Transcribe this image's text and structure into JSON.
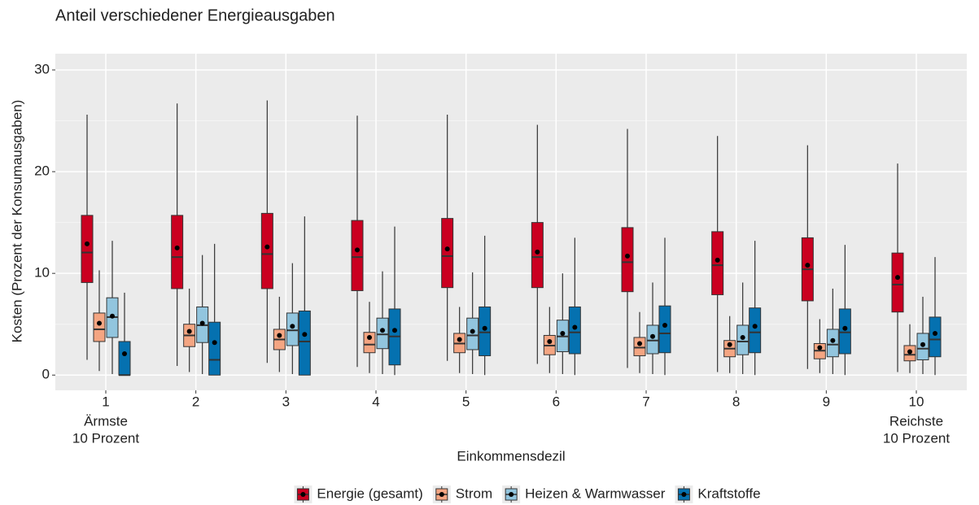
{
  "chart_data": {
    "type": "boxplot",
    "title": "Anteil verschiedener Energieausgaben",
    "xlabel": "Einkommensdezil",
    "ylabel": "Kosten (Prozent der Konsumausgaben)",
    "categories": [
      1,
      2,
      3,
      4,
      5,
      6,
      7,
      8,
      9,
      10
    ],
    "annotations": [
      {
        "x": 1,
        "lines": [
          "Ärmste",
          "10 Prozent"
        ]
      },
      {
        "x": 10,
        "lines": [
          "Reichste",
          "10 Prozent"
        ]
      }
    ],
    "ylim": [
      -1.5,
      31.6
    ],
    "yticks": [
      0,
      10,
      20,
      30
    ],
    "minor_yticks": [
      5,
      15,
      25
    ],
    "grid": true,
    "legend": "bottom",
    "series": [
      {
        "name": "Energie (gesamt)",
        "color": "#ca0020",
        "low": [
          1.5,
          0.9,
          1.2,
          0.8,
          1.4,
          1.1,
          0.7,
          0.3,
          0.6,
          0.3
        ],
        "q1": [
          9.1,
          8.5,
          8.5,
          8.3,
          8.6,
          8.6,
          8.2,
          7.9,
          7.3,
          6.2
        ],
        "median": [
          12.05,
          11.6,
          11.9,
          11.6,
          11.7,
          11.6,
          11.1,
          10.8,
          10.4,
          8.9
        ],
        "q3": [
          15.7,
          15.7,
          15.9,
          15.2,
          15.4,
          15.0,
          14.5,
          14.1,
          13.5,
          12.0
        ],
        "high": [
          25.6,
          26.7,
          27.0,
          25.5,
          25.6,
          24.6,
          24.2,
          23.5,
          22.6,
          20.8
        ],
        "mean": [
          12.9,
          12.5,
          12.6,
          12.3,
          12.4,
          12.1,
          11.7,
          11.3,
          10.8,
          9.6
        ]
      },
      {
        "name": "Strom",
        "color": "#f4a582",
        "low": [
          0.4,
          0.3,
          0.3,
          0.2,
          0.2,
          0.2,
          0.2,
          0.2,
          0.2,
          0.2
        ],
        "q1": [
          3.3,
          2.8,
          2.5,
          2.2,
          2.2,
          2.0,
          1.9,
          1.8,
          1.6,
          1.4
        ],
        "median": [
          4.5,
          3.9,
          3.5,
          3.0,
          3.1,
          2.9,
          2.7,
          2.6,
          2.4,
          2.0
        ],
        "q3": [
          6.1,
          5.0,
          4.5,
          4.2,
          4.1,
          3.9,
          3.7,
          3.4,
          3.1,
          2.9
        ],
        "high": [
          10.3,
          8.5,
          7.7,
          7.2,
          6.7,
          6.7,
          6.2,
          5.8,
          5.5,
          5.0
        ],
        "mean": [
          5.1,
          4.3,
          3.9,
          3.7,
          3.5,
          3.3,
          3.1,
          3.0,
          2.7,
          2.3
        ]
      },
      {
        "name": "Heizen & Warmwasser",
        "color": "#92c5de",
        "low": [
          0.1,
          0.1,
          0.1,
          0.1,
          0.1,
          0.1,
          0.1,
          0.1,
          0.1,
          0.1
        ],
        "q1": [
          3.7,
          3.2,
          2.9,
          2.6,
          2.5,
          2.3,
          2.1,
          2.0,
          1.8,
          1.5
        ],
        "median": [
          5.7,
          4.9,
          4.4,
          4.0,
          3.9,
          3.8,
          3.4,
          3.3,
          3.0,
          2.6
        ],
        "q3": [
          7.6,
          6.7,
          6.1,
          5.6,
          5.6,
          5.4,
          4.9,
          4.9,
          4.5,
          4.1
        ],
        "high": [
          13.2,
          11.8,
          11.0,
          10.2,
          10.1,
          10.0,
          9.1,
          9.1,
          8.5,
          7.7
        ],
        "mean": [
          5.8,
          5.1,
          4.8,
          4.4,
          4.3,
          4.1,
          3.8,
          3.7,
          3.4,
          3.0
        ]
      },
      {
        "name": "Kraftstoffe",
        "color": "#0571b0",
        "low": [
          0,
          0,
          0,
          0,
          0,
          0,
          0,
          0,
          0,
          0
        ],
        "q1": [
          0,
          0,
          0,
          1.0,
          1.9,
          2.1,
          2.2,
          2.2,
          2.1,
          1.8
        ],
        "median": [
          0,
          1.5,
          3.3,
          3.8,
          4.2,
          4.2,
          4.1,
          4.2,
          4.2,
          3.5
        ],
        "q3": [
          3.3,
          5.2,
          6.3,
          6.5,
          6.7,
          6.7,
          6.8,
          6.6,
          6.5,
          5.7
        ],
        "high": [
          8.1,
          12.9,
          15.6,
          14.6,
          13.7,
          13.5,
          13.5,
          13.2,
          12.8,
          11.6
        ],
        "mean": [
          2.1,
          3.2,
          4.0,
          4.4,
          4.6,
          4.7,
          4.9,
          4.8,
          4.6,
          4.1
        ]
      }
    ]
  }
}
